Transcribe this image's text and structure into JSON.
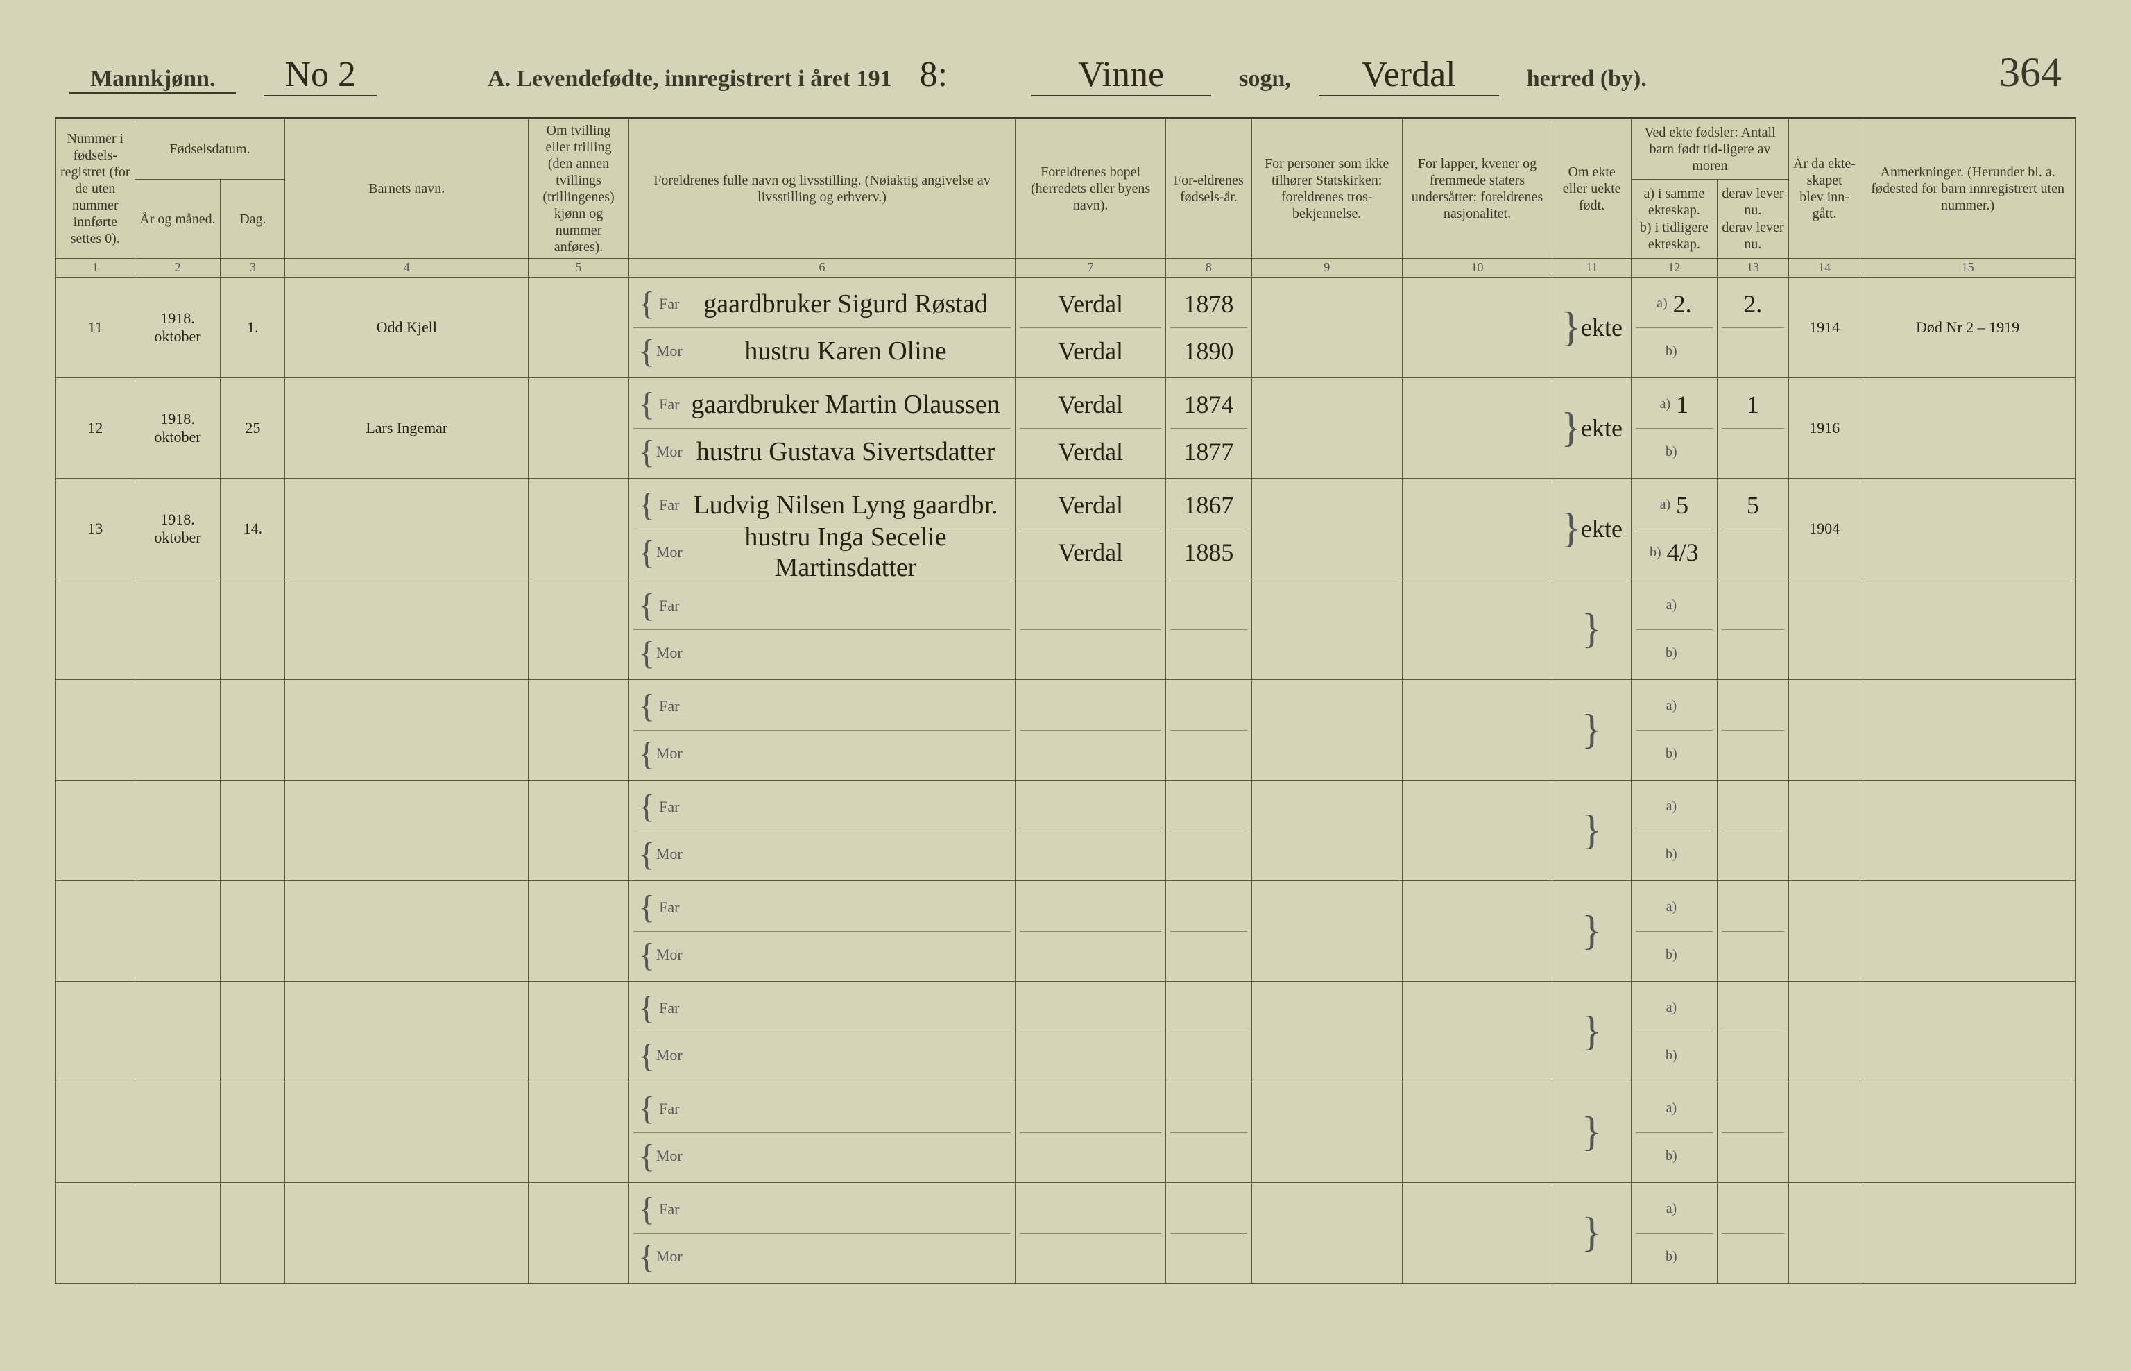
{
  "header": {
    "gender": "Mannkjønn.",
    "sheet_no": "No 2",
    "title_prefix": "A.  Levendefødte, innregistrert i året 191",
    "year_suffix": "8:",
    "sogn_value": "Vinne",
    "sogn_label": "sogn,",
    "herred_value": "Verdal",
    "herred_label": "herred (by).",
    "page_number": "364"
  },
  "columns": {
    "c1": "Nummer i fødsels-registret (for de uten nummer innførte settes 0).",
    "c2": {
      "group": "Fødselsdatum.",
      "a": "År og måned.",
      "b": "Dag."
    },
    "c4": "Barnets navn.",
    "c5": "Om tvilling eller trilling (den annen tvillings (trillingenes) kjønn og nummer anføres).",
    "c6": "Foreldrenes fulle navn og livsstilling. (Nøiaktig angivelse av livsstilling og erhverv.)",
    "c7": "Foreldrenes bopel (herredets eller byens navn).",
    "c8": "For-eldrenes fødsels-år.",
    "c9": "For personer som ikke tilhører Statskirken: foreldrenes tros-bekjennelse.",
    "c10": "For lapper, kvener og fremmede staters undersåtter: foreldrenes nasjonalitet.",
    "c11": "Om ekte eller uekte født.",
    "c12_13": {
      "group": "Ved ekte fødsler: Antall barn født tid-ligere av moren",
      "a": "a) i samme ekteskap.",
      "b": "b) i tidligere ekteskap.",
      "c": "derav lever nu.",
      "d": "derav lever nu."
    },
    "c14": "År da ekte-skapet blev inn-gått.",
    "c15": "Anmerkninger. (Herunder bl. a. fødested for barn innregistrert uten nummer.)"
  },
  "colnums": [
    "1",
    "2",
    "3",
    "4",
    "5",
    "6",
    "7",
    "8",
    "9",
    "10",
    "11",
    "12",
    "13",
    "14",
    "15"
  ],
  "rows": [
    {
      "num": "11",
      "year_month": "1918. oktober",
      "day": "1.",
      "child": "Odd Kjell",
      "twin": "",
      "far": "gaardbruker Sigurd Røstad",
      "mor": "hustru Karen Oline",
      "bopel_far": "Verdal",
      "bopel_mor": "Verdal",
      "fy_far": "1878",
      "fy_mor": "1890",
      "c9": "",
      "c10": "",
      "ekte": "ekte",
      "a12": "2.",
      "b12": "",
      "a13": "2.",
      "b13": "",
      "c14": "1914",
      "c15": "Død Nr 2 – 1919"
    },
    {
      "num": "12",
      "year_month": "1918. oktober",
      "day": "25",
      "child": "Lars Ingemar",
      "twin": "",
      "far": "gaardbruker Martin Olaussen",
      "mor": "hustru Gustava Sivertsdatter",
      "bopel_far": "Verdal",
      "bopel_mor": "Verdal",
      "fy_far": "1874",
      "fy_mor": "1877",
      "c9": "",
      "c10": "",
      "ekte": "ekte",
      "a12": "1",
      "b12": "",
      "a13": "1",
      "b13": "",
      "c14": "1916",
      "c15": ""
    },
    {
      "num": "13",
      "year_month": "1918. oktober",
      "day": "14.",
      "child": "",
      "twin": "",
      "far": "Ludvig Nilsen Lyng gaardbr.",
      "mor": "hustru Inga Secelie Martinsdatter",
      "bopel_far": "Verdal",
      "bopel_mor": "Verdal",
      "fy_far": "1867",
      "fy_mor": "1885",
      "c9": "",
      "c10": "",
      "ekte": "ekte",
      "a12": "5",
      "b12": "4/3",
      "a13": "5",
      "b13": "",
      "c14": "1904",
      "c15": ""
    },
    {
      "empty": true
    },
    {
      "empty": true
    },
    {
      "empty": true
    },
    {
      "empty": true
    },
    {
      "empty": true
    },
    {
      "empty": true
    },
    {
      "empty": true
    }
  ],
  "style": {
    "bg": "#d6d4b8",
    "ink": "#3a3a2a",
    "script_ink": "#282010",
    "rule": "#5a5a3a",
    "subrule": "#8a8a6a"
  }
}
